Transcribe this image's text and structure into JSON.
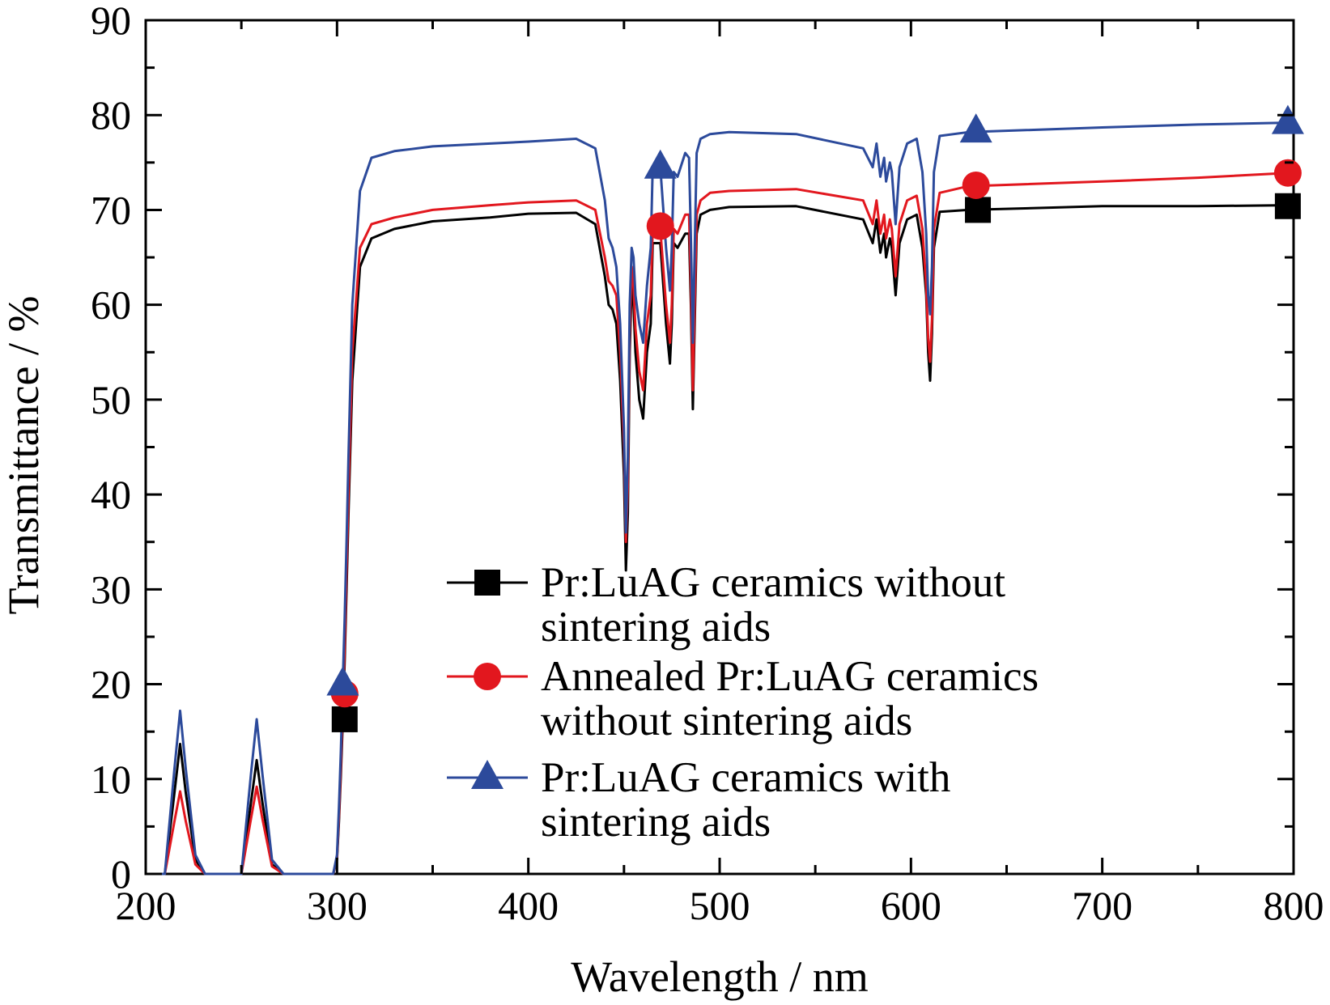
{
  "chart_data": {
    "type": "line",
    "title": "",
    "xlabel": "Wavelength / nm",
    "ylabel": "Transmittance / %",
    "xlim": [
      200,
      800
    ],
    "ylim": [
      0,
      90
    ],
    "xticks": [
      "200",
      "300",
      "400",
      "500",
      "600",
      "700",
      "800"
    ],
    "yticks": [
      "0",
      "10",
      "20",
      "30",
      "40",
      "50",
      "60",
      "70",
      "80",
      "90"
    ],
    "grid": false,
    "legend_position": "bottom-center",
    "series": [
      {
        "name_lines": [
          "Pr:LuAG ceramics without",
          "sintering aids"
        ],
        "color": "#000000",
        "marker": "square",
        "markers_x": [
          304,
          635,
          797
        ],
        "markers_y": [
          16.3,
          70.0,
          70.4
        ],
        "x": [
          200,
          210,
          215,
          218,
          221,
          226,
          231,
          250,
          255,
          258,
          261,
          266,
          272,
          298,
          300,
          301,
          302,
          303,
          304,
          305,
          306,
          308,
          312,
          318,
          330,
          350,
          380,
          400,
          425,
          435,
          440,
          442,
          444,
          446,
          448,
          450,
          451,
          452,
          453,
          454,
          455,
          456,
          458,
          460,
          462,
          464,
          465,
          467,
          469,
          472,
          474,
          475,
          476,
          478,
          482,
          484,
          485,
          486,
          488,
          490,
          495,
          505,
          540,
          575,
          580,
          582,
          584,
          586,
          587,
          589,
          590,
          592,
          594,
          598,
          603,
          606,
          608,
          609,
          610,
          611,
          612,
          615,
          630,
          700,
          750,
          797
        ],
        "y": [
          0,
          0,
          8.5,
          13.7,
          8.5,
          1.5,
          0,
          0,
          7.5,
          12.0,
          7.5,
          1.0,
          0,
          0,
          1.5,
          5.5,
          10.5,
          16.0,
          22.5,
          30.0,
          38.0,
          52.0,
          64.0,
          67.0,
          68.0,
          68.8,
          69.2,
          69.6,
          69.7,
          68.5,
          63.0,
          60.0,
          59.5,
          58.0,
          52.0,
          42.0,
          32.0,
          38.0,
          55.0,
          62.0,
          60.0,
          55.0,
          50.0,
          48.0,
          55.0,
          58.0,
          66.5,
          66.5,
          66.5,
          58.0,
          53.8,
          58.0,
          66.5,
          66.0,
          67.5,
          67.5,
          60.0,
          49.0,
          67.5,
          69.5,
          70.0,
          70.3,
          70.4,
          69.0,
          66.5,
          69.0,
          65.5,
          67.5,
          65.0,
          67.0,
          66.0,
          61.0,
          66.5,
          69.0,
          69.5,
          66.0,
          61.0,
          55.0,
          52.0,
          57.0,
          66.0,
          69.8,
          70.0,
          70.4,
          70.4,
          70.5
        ]
      },
      {
        "name_lines": [
          "Annealed Pr:LuAG ceramics",
          "without sintering aids"
        ],
        "color": "#e2171e",
        "marker": "circle",
        "markers_x": [
          304,
          469,
          634,
          797
        ],
        "markers_y": [
          19.0,
          68.3,
          72.6,
          73.9
        ],
        "x": [
          200,
          210,
          215,
          218,
          221,
          226,
          231,
          250,
          255,
          258,
          261,
          266,
          272,
          298,
          300,
          301,
          302,
          303,
          304,
          305,
          306,
          308,
          312,
          318,
          330,
          350,
          380,
          400,
          425,
          435,
          440,
          442,
          444,
          446,
          448,
          450,
          451,
          452,
          453,
          454,
          455,
          456,
          458,
          460,
          462,
          464,
          465,
          467,
          469,
          472,
          474,
          475,
          476,
          478,
          482,
          484,
          485,
          486,
          488,
          490,
          495,
          505,
          540,
          575,
          580,
          582,
          584,
          586,
          587,
          589,
          590,
          592,
          594,
          598,
          603,
          606,
          608,
          609,
          610,
          611,
          612,
          615,
          630,
          700,
          750,
          797
        ],
        "y": [
          0,
          0,
          5.5,
          8.7,
          5.5,
          1.0,
          0,
          0,
          5.8,
          9.2,
          5.8,
          0.8,
          0,
          0,
          1.8,
          6.0,
          11.5,
          17.5,
          24.0,
          32.0,
          40.0,
          55.0,
          66.0,
          68.5,
          69.2,
          70.0,
          70.5,
          70.8,
          71.0,
          70.0,
          65.0,
          62.5,
          62.0,
          61.0,
          55.0,
          45.0,
          35.0,
          41.0,
          57.0,
          64.0,
          62.0,
          57.5,
          53.0,
          51.0,
          58.0,
          61.0,
          68.0,
          68.0,
          68.0,
          60.0,
          56.0,
          60.0,
          68.0,
          67.5,
          69.5,
          69.5,
          62.0,
          51.0,
          69.5,
          71.0,
          71.8,
          72.0,
          72.2,
          71.0,
          68.5,
          71.0,
          67.5,
          69.5,
          67.0,
          69.0,
          68.0,
          63.0,
          68.5,
          71.0,
          71.5,
          68.0,
          62.0,
          56.5,
          54.0,
          58.5,
          68.0,
          71.8,
          72.5,
          73.0,
          73.4,
          73.9
        ]
      },
      {
        "name_lines": [
          "Pr:LuAG ceramics with",
          "sintering aids"
        ],
        "color": "#2c4a9b",
        "marker": "triangle",
        "markers_x": [
          303,
          469,
          634,
          797
        ],
        "markers_y": [
          20.0,
          74.5,
          78.3,
          79.2
        ],
        "x": [
          200,
          210,
          215,
          218,
          221,
          226,
          231,
          250,
          255,
          258,
          261,
          266,
          272,
          298,
          300,
          301,
          302,
          303,
          304,
          305,
          306,
          308,
          312,
          318,
          330,
          350,
          380,
          400,
          425,
          435,
          440,
          442,
          444,
          446,
          448,
          450,
          451,
          452,
          453,
          454,
          455,
          456,
          458,
          460,
          462,
          464,
          465,
          467,
          469,
          472,
          474,
          475,
          476,
          478,
          482,
          484,
          485,
          486,
          488,
          490,
          495,
          505,
          540,
          575,
          580,
          582,
          584,
          586,
          587,
          589,
          590,
          592,
          594,
          598,
          603,
          606,
          608,
          609,
          610,
          611,
          612,
          615,
          630,
          700,
          750,
          797
        ],
        "y": [
          0,
          0,
          11.0,
          17.2,
          11.0,
          2.0,
          0,
          0,
          10.5,
          16.3,
          10.5,
          1.5,
          0,
          0,
          2.0,
          7.0,
          13.0,
          20.0,
          27.0,
          35.0,
          44.0,
          60.0,
          72.0,
          75.5,
          76.2,
          76.7,
          77.0,
          77.2,
          77.5,
          76.5,
          71.0,
          67.0,
          66.0,
          64.0,
          58.0,
          47.0,
          36.0,
          44.0,
          60.0,
          66.0,
          65.0,
          61.0,
          58.0,
          56.0,
          62.0,
          66.0,
          74.5,
          74.5,
          74.5,
          66.0,
          61.5,
          66.0,
          74.0,
          73.5,
          76.0,
          75.5,
          67.0,
          56.0,
          76.0,
          77.5,
          78.0,
          78.2,
          78.0,
          76.5,
          74.5,
          77.0,
          73.5,
          75.5,
          73.0,
          75.0,
          74.0,
          68.5,
          74.5,
          77.0,
          77.5,
          74.0,
          67.5,
          61.0,
          59.0,
          64.0,
          74.0,
          77.8,
          78.2,
          78.7,
          79.0,
          79.2
        ]
      }
    ]
  }
}
